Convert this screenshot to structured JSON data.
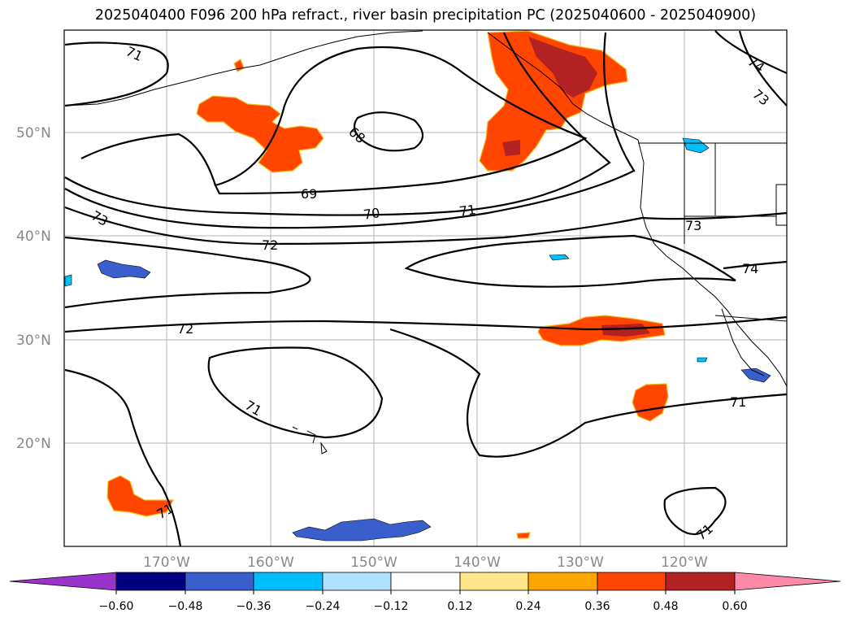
{
  "title": "2025040400 F096 200 hPa refract., river basin precipitation PC (2025040600 - 2025040900)",
  "map": {
    "lat_labels": [
      "50°N",
      "40°N",
      "30°N",
      "20°N"
    ],
    "lon_labels": [
      "170°W",
      "160°W",
      "150°W",
      "140°W",
      "130°W",
      "120°W"
    ],
    "contour_labels": [
      "71",
      "68",
      "69",
      "70",
      "71",
      "73",
      "72",
      "72",
      "71",
      "73",
      "74",
      "74",
      "73",
      "71",
      "71",
      "71"
    ]
  },
  "colorbar": {
    "colors": [
      "#9933cc",
      "#000080",
      "#3a5fcd",
      "#00bfff",
      "#b0e2ff",
      "#ffffff",
      "#fde68a",
      "#ffa500",
      "#ff4500",
      "#b22222",
      "#ff89a8"
    ],
    "ticks": [
      "−0.60",
      "−0.48",
      "−0.36",
      "−0.24",
      "−0.12",
      "0.12",
      "0.24",
      "0.36",
      "0.48",
      "0.60"
    ]
  }
}
